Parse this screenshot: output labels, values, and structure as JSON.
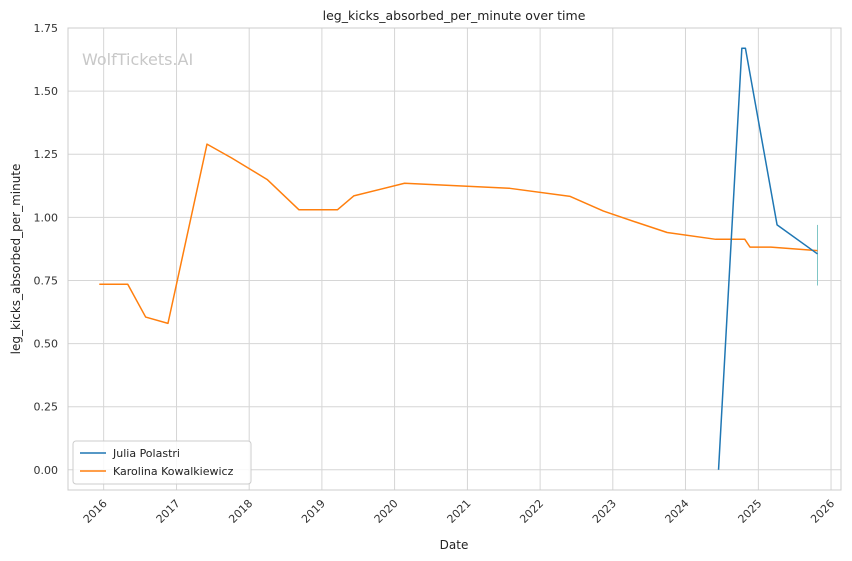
{
  "chart_data": {
    "type": "line",
    "title": "leg_kicks_absorbed_per_minute over time",
    "xlabel": "Date",
    "ylabel": "leg_kicks_absorbed_per_minute",
    "watermark": "WolfTickets.AI",
    "xlim": [
      "2015-07-06",
      "2026-02-20"
    ],
    "ylim": [
      -0.08,
      1.75
    ],
    "x_ticks": [
      "2016",
      "2017",
      "2018",
      "2019",
      "2020",
      "2021",
      "2022",
      "2023",
      "2024",
      "2025",
      "2026"
    ],
    "y_ticks": [
      "0.00",
      "0.25",
      "0.50",
      "0.75",
      "1.00",
      "1.25",
      "1.50",
      "1.75"
    ],
    "grid": true,
    "legend_position": "lower-left",
    "series": [
      {
        "name": "Julia Polastri",
        "color": "#1f77b4",
        "points": [
          {
            "x": "2024-06-15",
            "y": 0.0
          },
          {
            "x": "2024-10-10",
            "y": 1.67
          },
          {
            "x": "2024-10-28",
            "y": 1.67
          },
          {
            "x": "2025-04-05",
            "y": 0.97
          },
          {
            "x": "2025-10-25",
            "y": 0.855
          }
        ]
      },
      {
        "name": "Karolina Kowalkiewicz",
        "color": "#ff7f0e",
        "points": [
          {
            "x": "2015-12-10",
            "y": 0.735
          },
          {
            "x": "2016-05-01",
            "y": 0.735
          },
          {
            "x": "2016-07-30",
            "y": 0.605
          },
          {
            "x": "2016-11-19",
            "y": 0.58
          },
          {
            "x": "2017-06-03",
            "y": 1.29
          },
          {
            "x": "2017-10-05",
            "y": 1.235
          },
          {
            "x": "2018-04-01",
            "y": 1.15
          },
          {
            "x": "2018-09-08",
            "y": 1.03
          },
          {
            "x": "2019-03-20",
            "y": 1.03
          },
          {
            "x": "2019-06-10",
            "y": 1.085
          },
          {
            "x": "2020-02-20",
            "y": 1.135
          },
          {
            "x": "2021-08-01",
            "y": 1.115
          },
          {
            "x": "2022-06-01",
            "y": 1.083
          },
          {
            "x": "2022-11-15",
            "y": 1.025
          },
          {
            "x": "2023-05-01",
            "y": 0.98
          },
          {
            "x": "2023-10-01",
            "y": 0.94
          },
          {
            "x": "2024-06-01",
            "y": 0.913
          },
          {
            "x": "2024-10-25",
            "y": 0.913
          },
          {
            "x": "2024-11-20",
            "y": 0.882
          },
          {
            "x": "2025-03-05",
            "y": 0.882
          },
          {
            "x": "2025-10-25",
            "y": 0.868
          }
        ]
      }
    ],
    "error_bar": {
      "x": "2025-10-25",
      "y_low": 0.73,
      "y_high": 0.97,
      "color": "#7fc6c6"
    }
  }
}
